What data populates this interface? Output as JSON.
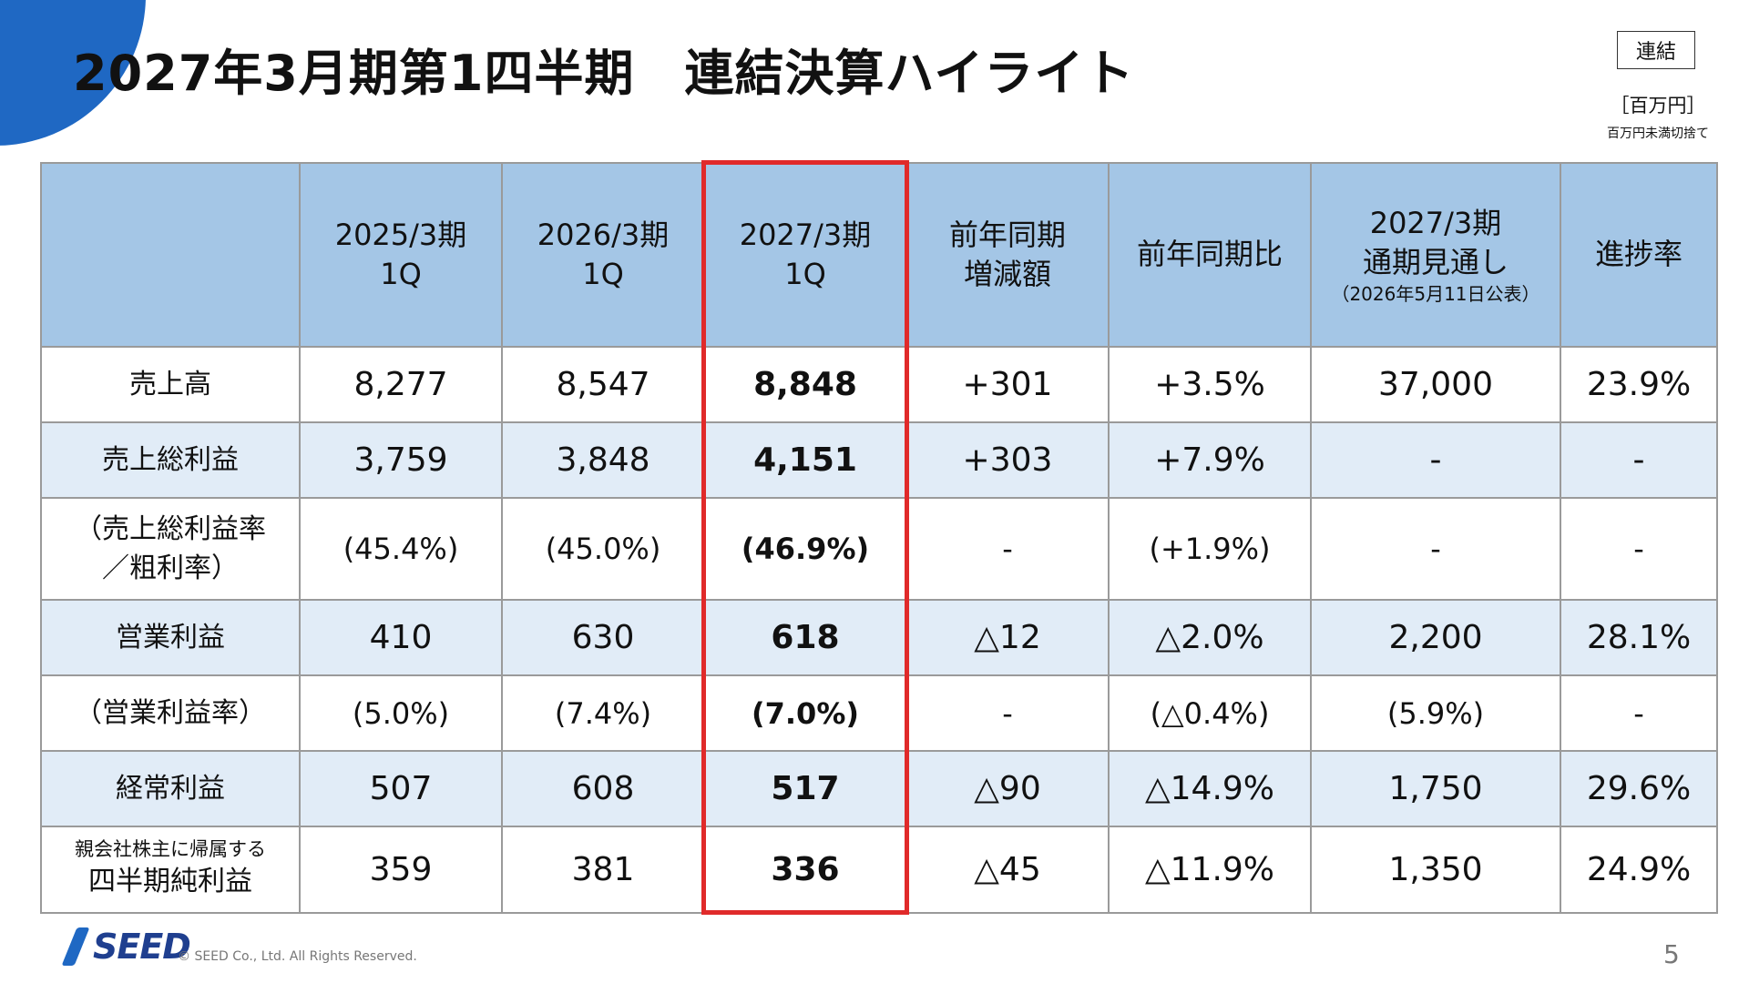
{
  "title": "2027年3月期第1四半期　連結決算ハイライト",
  "scope_label": "連結",
  "unit_label": "［百万円］",
  "unit_note": "百万円未満切捨て",
  "header": {
    "col1": [
      "2025/3期",
      "1Q"
    ],
    "col2": [
      "2026/3期",
      "1Q"
    ],
    "col3": [
      "2027/3期",
      "1Q"
    ],
    "col4": [
      "前年同期",
      "増減額"
    ],
    "col5": [
      "前年同期比"
    ],
    "col6": [
      "2027/3期",
      "通期見通し",
      "（2026年5月11日公表）"
    ],
    "col7": [
      "進捗率"
    ]
  },
  "rows": [
    {
      "label": [
        "売上高"
      ],
      "values": [
        "8,277",
        "8,547",
        "8,848",
        "+301",
        "+3.5%",
        "37,000",
        "23.9%"
      ]
    },
    {
      "label": [
        "売上総利益"
      ],
      "values": [
        "3,759",
        "3,848",
        "4,151",
        "+303",
        "+7.9%",
        "-",
        "-"
      ]
    },
    {
      "label": [
        "（売上総利益率",
        "／粗利率）"
      ],
      "values": [
        "(45.4%)",
        "(45.0%)",
        "(46.9%)",
        "-",
        "(+1.9%)",
        "-",
        "-"
      ]
    },
    {
      "label": [
        "営業利益"
      ],
      "values": [
        "410",
        "630",
        "618",
        "△12",
        "△2.0%",
        "2,200",
        "28.1%"
      ]
    },
    {
      "label": [
        "（営業利益率）"
      ],
      "values": [
        "(5.0%)",
        "(7.4%)",
        "(7.0%)",
        "-",
        "(△0.4%)",
        "(5.9%)",
        "-"
      ]
    },
    {
      "label": [
        "経常利益"
      ],
      "values": [
        "507",
        "608",
        "517",
        "△90",
        "△14.9%",
        "1,750",
        "29.6%"
      ]
    },
    {
      "label": [
        "親会社株主に帰属する",
        "四半期純利益"
      ],
      "values": [
        "359",
        "381",
        "336",
        "△45",
        "△11.9%",
        "1,350",
        "24.9%"
      ]
    }
  ],
  "footer": {
    "logo_text": "SEED",
    "copyright": "© SEED Co., Ltd. All Rights Reserved.",
    "page_number": "5"
  },
  "colors": {
    "header_bg": "#a4c6e6",
    "alt_row_bg": "#e1ecf7",
    "highlight_border": "#e02a2a",
    "brand_blue": "#1f68c3"
  }
}
